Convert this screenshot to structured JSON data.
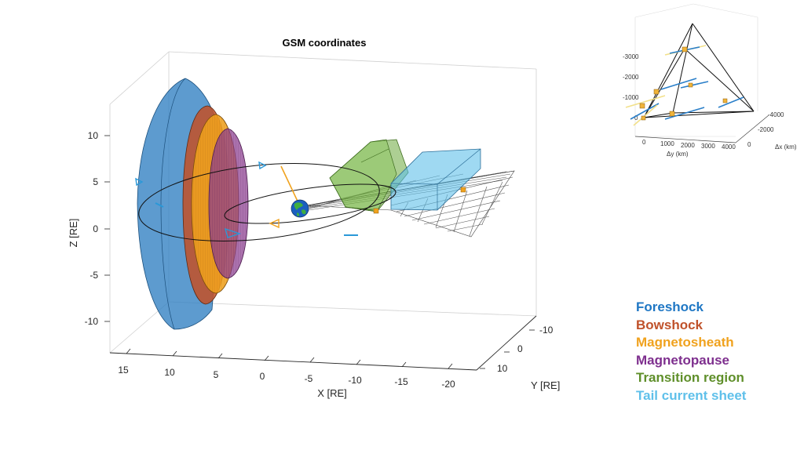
{
  "figure": {
    "title": "GSM coordinates",
    "x_label": "X [RE]",
    "y_label": "Y [RE]",
    "z_label": "Z [RE]",
    "z_ticks": [
      "10",
      "5",
      "0",
      "-5",
      "-10"
    ],
    "x_ticks": [
      "15",
      "10",
      "5",
      "0",
      "-5",
      "-10",
      "-15",
      "-20"
    ],
    "y_ticks": [
      "-10",
      "0",
      "10"
    ]
  },
  "inset": {
    "dx_label": "Δx (km)",
    "dy_label": "Δy (km)",
    "z_ticks": [
      "-3000",
      "-2000",
      "-1000",
      "0"
    ],
    "dy_ticks": [
      "0",
      "1000",
      "2000",
      "3000",
      "4000"
    ],
    "dx_ticks": [
      "0",
      "-2000",
      "-4000"
    ]
  },
  "legend": [
    {
      "label": "Foreshock",
      "color": "#1f77c4"
    },
    {
      "label": "Bowshock",
      "color": "#c0522b"
    },
    {
      "label": "Magnetosheath",
      "color": "#f0a21e"
    },
    {
      "label": "Magnetopause",
      "color": "#7e2f8e"
    },
    {
      "label": "Transition region",
      "color": "#5f8f2a"
    },
    {
      "label": "Tail current sheet",
      "color": "#5fc0ea"
    }
  ]
}
